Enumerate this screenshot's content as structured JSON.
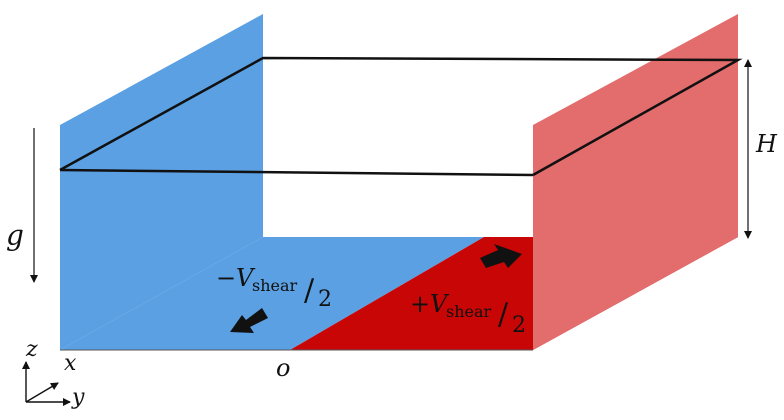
{
  "labels": {
    "gravity": "g",
    "height": "H",
    "velocity_left": {
      "sign": "−",
      "symbol": "V",
      "subscript": "shear",
      "divider": "/",
      "denominator": "2"
    },
    "velocity_right": {
      "sign": "+",
      "symbol": "V",
      "subscript": "shear",
      "divider": "/",
      "denominator": "2"
    },
    "origin": "o",
    "axis_x": "x",
    "axis_y": "y",
    "axis_z": "z"
  },
  "colors": {
    "left_wall": "#5aa0e3",
    "left_floor": "#5aa0e3",
    "right_wall": "#e36c6c",
    "right_floor": "#c80606",
    "lines": "#111111"
  }
}
